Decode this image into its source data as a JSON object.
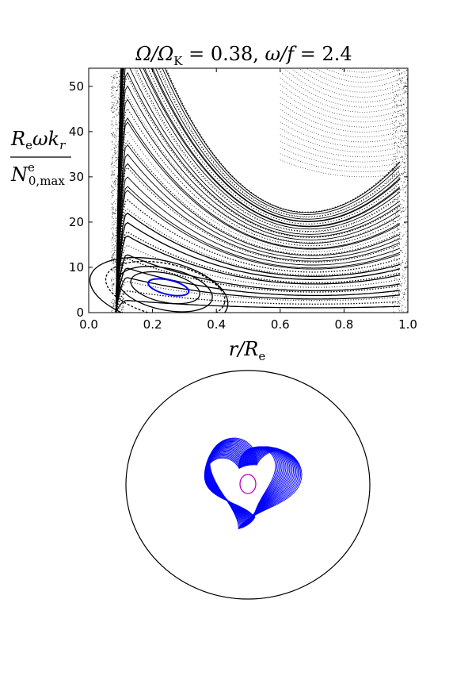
{
  "chart_data": [
    {
      "type": "scatter",
      "title": "Ω/Ω_K = 0.38, ω/f = 2.4",
      "title_parts": {
        "a": "Ω/Ω",
        "a_sub": "K",
        "b": " = 0.38, ",
        "c": "ω/f",
        "d": " = 2.4"
      },
      "xlabel": "r/R_e",
      "xlabel_parts": {
        "main": "r/R",
        "sub": "e"
      },
      "ylabel": "R_e ω k_r / N^e_{0,max}",
      "ylabel_parts": {
        "num": "R",
        "num_sub": "e",
        "num_rest": "ωk",
        "num_sub2": "r",
        "den": "N",
        "den_sup": "e",
        "den_sub": "0,max"
      },
      "xlim": [
        0.0,
        1.0
      ],
      "ylim": [
        0,
        54
      ],
      "xticks": [
        "0.0",
        "0.2",
        "0.4",
        "0.6",
        "0.8",
        "1.0"
      ],
      "yticks": [
        "0",
        "10",
        "20",
        "30",
        "40",
        "50"
      ],
      "grid": false,
      "series": [
        {
          "color": "#000000",
          "x_range": [
            0.07,
            0.99
          ],
          "y_range": [
            0,
            54
          ]
        },
        {
          "color": "#0000ff",
          "x": [
            0.19,
            0.24,
            0.31,
            0.22,
            0.19
          ],
          "y": [
            7,
            7,
            4,
            5.8,
            7
          ]
        }
      ]
    },
    {
      "type": "line",
      "colors": {
        "boundary": "#000000",
        "ray": "#0000ff",
        "core": "#bf00bf"
      }
    }
  ]
}
